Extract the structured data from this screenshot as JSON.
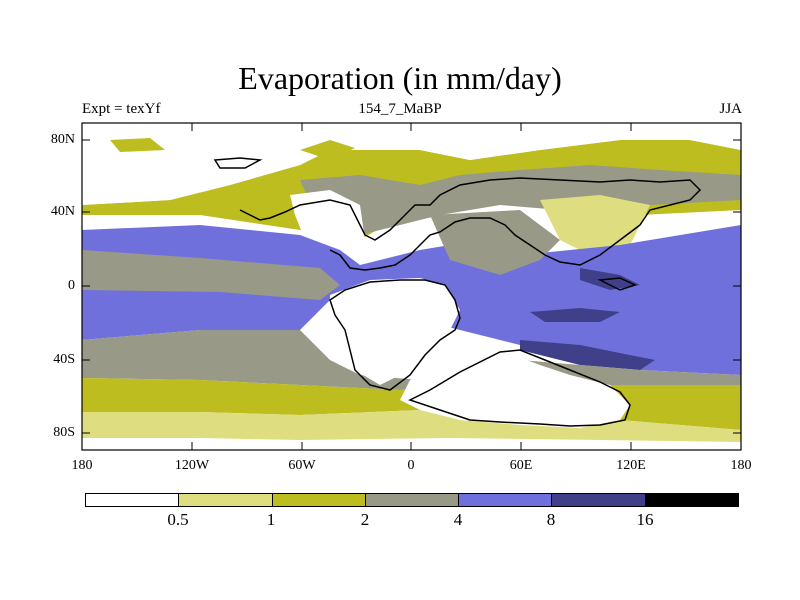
{
  "title": "Evaporation (in mm/day)",
  "experiment_label": "Expt = texYf",
  "run_label": "154_7_MaBP",
  "season_label": "JJA",
  "lat_ticks": [
    "80N",
    "40N",
    "0",
    "40S",
    "80S"
  ],
  "lon_ticks": [
    "180",
    "120W",
    "60W",
    "0",
    "60E",
    "120E",
    "180"
  ],
  "colorbar": {
    "labels": [
      "0.5",
      "1",
      "2",
      "4",
      "8",
      "16"
    ],
    "colors": [
      "#ffffff",
      "#dede80",
      "#bdbd20",
      "#999988",
      "#7070dd",
      "#40408a",
      "#000000"
    ]
  },
  "palette": {
    "white": "#ffffff",
    "pale_olive": "#dede80",
    "olive": "#bdbd20",
    "grey": "#999988",
    "blue": "#7070dd",
    "dark_blue": "#40408a"
  }
}
